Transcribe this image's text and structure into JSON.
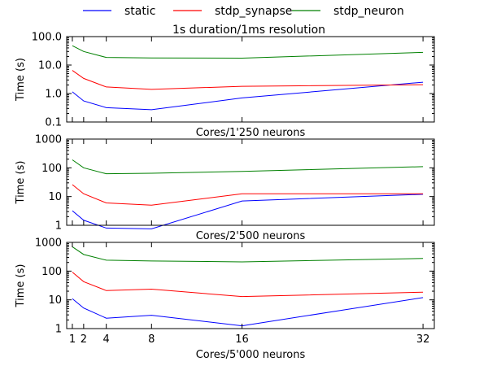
{
  "figure": {
    "title": "1s duration/1ms resolution"
  },
  "legend": {
    "placement": "top, above plots, 3 columns",
    "entries": [
      {
        "label": "static",
        "color": "#0000ff"
      },
      {
        "label": "stdp_synapse",
        "color": "#ff0000"
      },
      {
        "label": "stdp_neuron",
        "color": "#008000"
      }
    ]
  },
  "chart_data": [
    {
      "type": "line",
      "title": "1s duration/1ms resolution",
      "xlabel": "Cores/1'250 neurons",
      "ylabel": "Time (s)",
      "yscale": "log",
      "xlim": [
        0.5,
        33
      ],
      "ylim": [
        0.1,
        100
      ],
      "yticks": [
        0.1,
        1,
        10,
        100
      ],
      "ytick_labels": [
        "0.1",
        "1.0",
        "10.0",
        "100.0"
      ],
      "xticks": [],
      "xtick_labels": [],
      "grid": false,
      "x": [
        1,
        2,
        4,
        8,
        16,
        32
      ],
      "series": [
        {
          "name": "static",
          "color": "#0000ff",
          "values": [
            1.15,
            0.55,
            0.32,
            0.27,
            0.7,
            2.5
          ]
        },
        {
          "name": "stdp_synapse",
          "color": "#ff0000",
          "values": [
            6.5,
            3.4,
            1.7,
            1.4,
            1.8,
            2.05
          ]
        },
        {
          "name": "stdp_neuron",
          "color": "#008000",
          "values": [
            48,
            30,
            18.5,
            17.8,
            17.5,
            28
          ]
        }
      ]
    },
    {
      "type": "line",
      "title": "",
      "xlabel": "Cores/2'500 neurons",
      "ylabel": "Time (s)",
      "yscale": "log",
      "xlim": [
        0.5,
        33
      ],
      "ylim": [
        1,
        1000
      ],
      "yticks": [
        1,
        10,
        100,
        1000
      ],
      "ytick_labels": [
        "1",
        "10",
        "100",
        "1000"
      ],
      "xticks": [],
      "xtick_labels": [],
      "grid": false,
      "x": [
        1,
        2,
        4,
        8,
        16,
        32
      ],
      "series": [
        {
          "name": "static",
          "color": "#0000ff",
          "values": [
            3.2,
            1.5,
            0.8,
            0.75,
            7,
            12
          ]
        },
        {
          "name": "stdp_synapse",
          "color": "#ff0000",
          "values": [
            26,
            12.5,
            6,
            5,
            12.5,
            12.5
          ]
        },
        {
          "name": "stdp_neuron",
          "color": "#008000",
          "values": [
            190,
            100,
            62,
            65,
            75,
            110
          ]
        }
      ]
    },
    {
      "type": "line",
      "title": "",
      "xlabel": "Cores/5'000 neurons",
      "ylabel": "Time (s)",
      "yscale": "log",
      "xlim": [
        0.5,
        33
      ],
      "ylim": [
        1,
        1000
      ],
      "yticks": [
        1,
        10,
        100,
        1000
      ],
      "ytick_labels": [
        "1",
        "10",
        "100",
        "1000"
      ],
      "xticks": [
        1,
        2,
        4,
        8,
        16,
        32
      ],
      "xtick_labels": [
        "1",
        "2",
        "4",
        "8",
        "16",
        "32"
      ],
      "grid": false,
      "x": [
        1,
        2,
        4,
        8,
        16,
        32
      ],
      "series": [
        {
          "name": "static",
          "color": "#0000ff",
          "values": [
            11,
            5.2,
            2.3,
            2.9,
            1.25,
            12
          ]
        },
        {
          "name": "stdp_synapse",
          "color": "#ff0000",
          "values": [
            92,
            43,
            21,
            23.5,
            13,
            18.5
          ]
        },
        {
          "name": "stdp_neuron",
          "color": "#008000",
          "values": [
            700,
            380,
            240,
            225,
            210,
            275
          ]
        }
      ]
    }
  ]
}
